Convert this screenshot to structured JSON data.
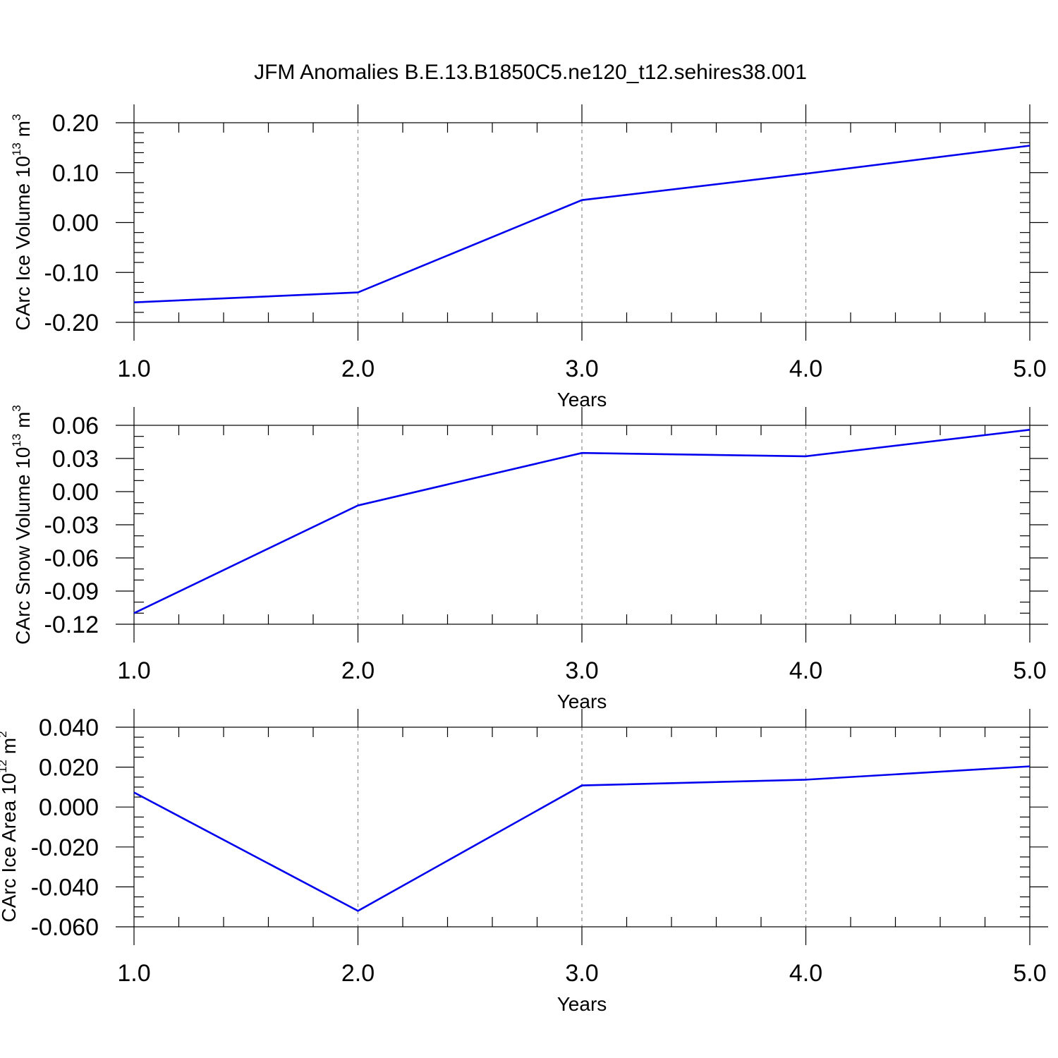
{
  "title": "JFM Anomalies B.E.13.B1850C5.ne120_t12.sehires38.001",
  "line_color": "#0000ee",
  "chart_data": [
    {
      "type": "line",
      "title": "JFM Anomalies B.E.13.B1850C5.ne120_t12.sehires38.001",
      "xlabel": "Years",
      "ylabel": "CArc Ice Volume 10",
      "ylabel_exp": "13",
      "ylabel_unit": " m",
      "ylabel_unit_exp": "3",
      "x": [
        1,
        2,
        3,
        4,
        5
      ],
      "series": [
        {
          "name": "CArc Ice Volume",
          "values": [
            -0.16,
            -0.14,
            0.045,
            0.098,
            0.154
          ]
        }
      ],
      "xlim": [
        1,
        5
      ],
      "ylim": [
        -0.2,
        0.2
      ],
      "x_ticks": [
        1,
        2,
        3,
        4,
        5
      ],
      "x_tick_labels": [
        "1.0",
        "2.0",
        "3.0",
        "4.0",
        "5.0"
      ],
      "y_ticks": [
        -0.2,
        -0.1,
        0,
        0.1,
        0.2
      ],
      "y_tick_labels": [
        "-0.20",
        "-0.10",
        "0.00",
        "0.10",
        "0.20"
      ],
      "x_minor_step": 0.2,
      "y_minor_step": 0.02,
      "grid": "vertical dashed at major x ticks"
    },
    {
      "type": "line",
      "xlabel": "Years",
      "ylabel": "CArc Snow Volume 10",
      "ylabel_exp": "13",
      "ylabel_unit": " m",
      "ylabel_unit_exp": "3",
      "x": [
        1,
        2,
        3,
        4,
        5
      ],
      "series": [
        {
          "name": "CArc Snow Volume",
          "values": [
            -0.11,
            -0.0125,
            0.035,
            0.032,
            0.056
          ]
        }
      ],
      "xlim": [
        1,
        5
      ],
      "ylim": [
        -0.12,
        0.06
      ],
      "x_ticks": [
        1,
        2,
        3,
        4,
        5
      ],
      "x_tick_labels": [
        "1.0",
        "2.0",
        "3.0",
        "4.0",
        "5.0"
      ],
      "y_ticks": [
        -0.12,
        -0.09,
        -0.06,
        -0.03,
        0,
        0.03,
        0.06
      ],
      "y_tick_labels": [
        "-0.12",
        "-0.09",
        "-0.06",
        "-0.03",
        "0.00",
        "0.03",
        "0.06"
      ],
      "x_minor_step": 0.2,
      "y_minor_step": 0.01,
      "grid": "vertical dashed at major x ticks"
    },
    {
      "type": "line",
      "xlabel": "Years",
      "ylabel": "CArc Ice Area 10",
      "ylabel_exp": "12",
      "ylabel_unit": " m",
      "ylabel_unit_exp": "2",
      "x": [
        1,
        2,
        3,
        4,
        5
      ],
      "series": [
        {
          "name": "CArc Ice Area",
          "values": [
            0.0073,
            -0.052,
            0.0108,
            0.0137,
            0.0204
          ]
        }
      ],
      "xlim": [
        1,
        5
      ],
      "ylim": [
        -0.06,
        0.04
      ],
      "x_ticks": [
        1,
        2,
        3,
        4,
        5
      ],
      "x_tick_labels": [
        "1.0",
        "2.0",
        "3.0",
        "4.0",
        "5.0"
      ],
      "y_ticks": [
        -0.06,
        -0.04,
        -0.02,
        0,
        0.02,
        0.04
      ],
      "y_tick_labels": [
        "-0.060",
        "-0.040",
        "-0.020",
        "0.000",
        "0.020",
        "0.040"
      ],
      "x_minor_step": 0.2,
      "y_minor_step": 0.005,
      "grid": "vertical dashed at major x ticks"
    }
  ]
}
